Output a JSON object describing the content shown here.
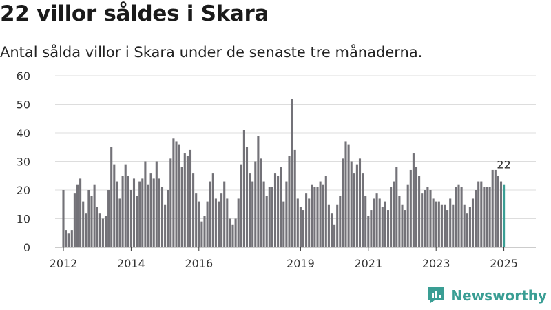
{
  "title": "22 villor såldes i Skara",
  "subtitle": "Antal sålda villor i Skara under de senaste tre månaderna.",
  "brand": "Newsworthy",
  "colors": {
    "bar": "#737278",
    "highlight": "#3a9e94",
    "grid": "#dddddd"
  },
  "chart_data": {
    "type": "bar",
    "xlabel": "",
    "ylabel": "",
    "ylim": [
      0,
      60
    ],
    "yticks": [
      0,
      10,
      20,
      30,
      40,
      50,
      60
    ],
    "xtick_labels": [
      "2012",
      "2014",
      "2016",
      "2019",
      "2021",
      "2023",
      "2025"
    ],
    "period": "monthly, 2012-01 to 2025-01 (rolling three-month total)",
    "start": "2012-01",
    "values": [
      20,
      6,
      5,
      6,
      19,
      22,
      24,
      16,
      12,
      20,
      18,
      22,
      14,
      12,
      10,
      11,
      20,
      35,
      29,
      23,
      17,
      25,
      29,
      25,
      20,
      24,
      18,
      23,
      24,
      30,
      22,
      26,
      24,
      30,
      24,
      21,
      15,
      20,
      31,
      38,
      37,
      36,
      28,
      33,
      32,
      34,
      26,
      19,
      16,
      9,
      11,
      16,
      23,
      26,
      17,
      16,
      19,
      23,
      17,
      10,
      8,
      10,
      17,
      29,
      41,
      35,
      26,
      23,
      30,
      39,
      31,
      23,
      18,
      21,
      21,
      26,
      25,
      28,
      16,
      23,
      32,
      52,
      34,
      17,
      14,
      13,
      19,
      17,
      22,
      21,
      21,
      23,
      22,
      25,
      15,
      12,
      8,
      15,
      18,
      31,
      37,
      36,
      30,
      26,
      29,
      31,
      26,
      18,
      11,
      13,
      17,
      19,
      17,
      14,
      16,
      13,
      21,
      23,
      28,
      18,
      15,
      13,
      22,
      27,
      33,
      28,
      25,
      19,
      20,
      21,
      20,
      17,
      16,
      16,
      15,
      15,
      13,
      17,
      15,
      21,
      22,
      21,
      15,
      12,
      14,
      17,
      20,
      23,
      23,
      21,
      21,
      21,
      27,
      27,
      25,
      23,
      22
    ],
    "highlight_last": true,
    "last_label": "22"
  }
}
